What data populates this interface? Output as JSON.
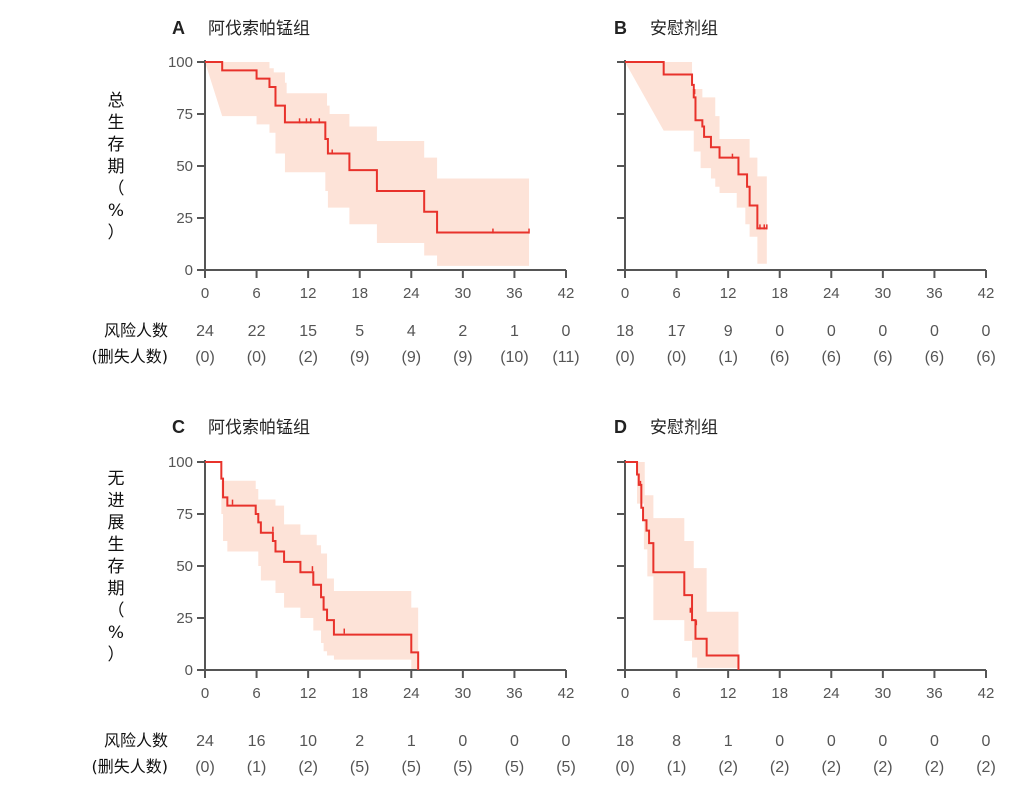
{
  "chart_data": [
    {
      "id": "A",
      "type": "line",
      "letter": "A",
      "title": "阿伐索帕锰组",
      "ylabel": "总生存期（%）",
      "xlim": [
        0,
        42
      ],
      "ylim": [
        0,
        100
      ],
      "xticks": [
        "0",
        "6",
        "12",
        "18",
        "24",
        "30",
        "36",
        "42"
      ],
      "yticks": [
        "0",
        "25",
        "50",
        "75",
        "100"
      ],
      "steps": [
        [
          0,
          100
        ],
        [
          2,
          100
        ],
        [
          2,
          96
        ],
        [
          6,
          96
        ],
        [
          6,
          92
        ],
        [
          7.5,
          92
        ],
        [
          7.5,
          88
        ],
        [
          8.2,
          88
        ],
        [
          8.2,
          79
        ],
        [
          9.3,
          79
        ],
        [
          9.3,
          71
        ],
        [
          14,
          71
        ],
        [
          14,
          63
        ],
        [
          14.3,
          63
        ],
        [
          14.3,
          56
        ],
        [
          16.8,
          56
        ],
        [
          16.8,
          48
        ],
        [
          20,
          48
        ],
        [
          20,
          38
        ],
        [
          25.5,
          38
        ],
        [
          25.5,
          28
        ],
        [
          27,
          28
        ],
        [
          27,
          18
        ],
        [
          37.7,
          18
        ]
      ],
      "ci_upper": [
        [
          0,
          100
        ],
        [
          2,
          100
        ],
        [
          6,
          100
        ],
        [
          7.5,
          97
        ],
        [
          8,
          95
        ],
        [
          9.3,
          90
        ],
        [
          9.5,
          85
        ],
        [
          14,
          85
        ],
        [
          14.2,
          79
        ],
        [
          14.5,
          75
        ],
        [
          16.8,
          75
        ],
        [
          16.8,
          69
        ],
        [
          20,
          69
        ],
        [
          20,
          62
        ],
        [
          25.5,
          62
        ],
        [
          25.5,
          54
        ],
        [
          27,
          54
        ],
        [
          27,
          44
        ],
        [
          37.7,
          44
        ]
      ],
      "ci_lower": [
        [
          2,
          74
        ],
        [
          6,
          74
        ],
        [
          6,
          70
        ],
        [
          7.5,
          70
        ],
        [
          7.5,
          66
        ],
        [
          8.2,
          66
        ],
        [
          8.2,
          56
        ],
        [
          9.3,
          56
        ],
        [
          9.3,
          47
        ],
        [
          14,
          47
        ],
        [
          14,
          38
        ],
        [
          14.3,
          38
        ],
        [
          14.3,
          30
        ],
        [
          16.8,
          30
        ],
        [
          16.8,
          22
        ],
        [
          20,
          22
        ],
        [
          20,
          13
        ],
        [
          25.5,
          13
        ],
        [
          25.5,
          7
        ],
        [
          27,
          7
        ],
        [
          27,
          2
        ],
        [
          37.7,
          2
        ]
      ],
      "censors": [
        [
          11,
          71
        ],
        [
          11.8,
          71
        ],
        [
          12.3,
          71
        ],
        [
          13.3,
          71
        ],
        [
          14.8,
          56
        ],
        [
          33.5,
          18
        ],
        [
          37.7,
          18
        ]
      ],
      "risk_numbers": [
        "24",
        "22",
        "15",
        "5",
        "4",
        "2",
        "1",
        "0"
      ],
      "censored_numbers": [
        "(0)",
        "(0)",
        "(2)",
        "(9)",
        "(9)",
        "(9)",
        "(10)",
        "(11)"
      ]
    },
    {
      "id": "B",
      "type": "line",
      "letter": "B",
      "title": "安慰剂组",
      "ylabel": "",
      "xlim": [
        0,
        42
      ],
      "ylim": [
        0,
        100
      ],
      "xticks": [
        "0",
        "6",
        "12",
        "18",
        "24",
        "30",
        "36",
        "42"
      ],
      "yticks": [
        "",
        "",
        "",
        "",
        ""
      ],
      "steps": [
        [
          0,
          100
        ],
        [
          4.5,
          100
        ],
        [
          4.5,
          94
        ],
        [
          7.8,
          94
        ],
        [
          7.8,
          89
        ],
        [
          8,
          89
        ],
        [
          8,
          83
        ],
        [
          8.2,
          83
        ],
        [
          8.2,
          72
        ],
        [
          9,
          72
        ],
        [
          9,
          69
        ],
        [
          9.2,
          69
        ],
        [
          9.2,
          64
        ],
        [
          10,
          64
        ],
        [
          10,
          59
        ],
        [
          11,
          59
        ],
        [
          11,
          54
        ],
        [
          13.2,
          54
        ],
        [
          13.2,
          46
        ],
        [
          14.2,
          46
        ],
        [
          14.2,
          40
        ],
        [
          14.5,
          40
        ],
        [
          14.5,
          31
        ],
        [
          15.4,
          31
        ],
        [
          15.4,
          20
        ],
        [
          16.5,
          20
        ]
      ],
      "ci_upper": [
        [
          0,
          100
        ],
        [
          4.5,
          100
        ],
        [
          7.8,
          99
        ],
        [
          7.8,
          87
        ],
        [
          8.8,
          87
        ],
        [
          9,
          83
        ],
        [
          10,
          83
        ],
        [
          10.5,
          74
        ],
        [
          11,
          74
        ],
        [
          11,
          63
        ],
        [
          13.2,
          63
        ],
        [
          14.5,
          54
        ],
        [
          15.4,
          54
        ],
        [
          15.4,
          45
        ],
        [
          16.5,
          45
        ]
      ],
      "ci_lower": [
        [
          4.5,
          67
        ],
        [
          7.8,
          67
        ],
        [
          8,
          57
        ],
        [
          8.8,
          57
        ],
        [
          8.8,
          49
        ],
        [
          9.2,
          49
        ],
        [
          10,
          44
        ],
        [
          10.5,
          40
        ],
        [
          11,
          37
        ],
        [
          13,
          30
        ],
        [
          13.2,
          30
        ],
        [
          14,
          22
        ],
        [
          14.5,
          16
        ],
        [
          15.4,
          16
        ],
        [
          15.4,
          3
        ],
        [
          16.5,
          3
        ]
      ],
      "censors": [
        [
          8.1,
          85
        ],
        [
          12.5,
          54
        ],
        [
          15.7,
          20
        ],
        [
          16.2,
          20
        ],
        [
          16.5,
          20
        ]
      ],
      "risk_numbers": [
        "18",
        "17",
        "9",
        "0",
        "0",
        "0",
        "0",
        "0"
      ],
      "censored_numbers": [
        "(0)",
        "(0)",
        "(1)",
        "(6)",
        "(6)",
        "(6)",
        "(6)",
        "(6)"
      ]
    },
    {
      "id": "C",
      "type": "line",
      "letter": "C",
      "title": "阿伐索帕锰组",
      "ylabel": "无进展生存期（%）",
      "xlim": [
        0,
        42
      ],
      "ylim": [
        0,
        100
      ],
      "xticks": [
        "0",
        "6",
        "12",
        "18",
        "24",
        "30",
        "36",
        "42"
      ],
      "yticks": [
        "0",
        "25",
        "50",
        "75",
        "100"
      ],
      "steps": [
        [
          0,
          100
        ],
        [
          1.9,
          100
        ],
        [
          1.9,
          92
        ],
        [
          2.1,
          92
        ],
        [
          2.1,
          83
        ],
        [
          2.6,
          83
        ],
        [
          2.6,
          79
        ],
        [
          5.9,
          79
        ],
        [
          5.9,
          75
        ],
        [
          6.2,
          75
        ],
        [
          6.2,
          71
        ],
        [
          6.5,
          71
        ],
        [
          6.5,
          66
        ],
        [
          7.9,
          66
        ],
        [
          7.9,
          62
        ],
        [
          8.2,
          62
        ],
        [
          8.2,
          57
        ],
        [
          9.2,
          57
        ],
        [
          9.2,
          52
        ],
        [
          11.1,
          52
        ],
        [
          11.1,
          47
        ],
        [
          12.6,
          47
        ],
        [
          12.6,
          41
        ],
        [
          13.5,
          41
        ],
        [
          13.5,
          35
        ],
        [
          13.8,
          35
        ],
        [
          13.8,
          29
        ],
        [
          14.2,
          29
        ],
        [
          14.2,
          24
        ],
        [
          15,
          24
        ],
        [
          15,
          17
        ],
        [
          24,
          17
        ],
        [
          24,
          8.5
        ],
        [
          24.8,
          8.5
        ],
        [
          24.8,
          0
        ]
      ],
      "ci_upper": [
        [
          1.9,
          91
        ],
        [
          5.5,
          91
        ],
        [
          5.9,
          87
        ],
        [
          6.2,
          82
        ],
        [
          7.9,
          82
        ],
        [
          8.2,
          79
        ],
        [
          9.2,
          75
        ],
        [
          9.2,
          70
        ],
        [
          11.1,
          70
        ],
        [
          11.1,
          65
        ],
        [
          12.6,
          65
        ],
        [
          13,
          60
        ],
        [
          13.5,
          56
        ],
        [
          14.2,
          50
        ],
        [
          14.2,
          44
        ],
        [
          15,
          44
        ],
        [
          15,
          38
        ],
        [
          24,
          38
        ],
        [
          24,
          30
        ],
        [
          24.8,
          30
        ]
      ],
      "ci_lower": [
        [
          1.9,
          75
        ],
        [
          2.1,
          62
        ],
        [
          2.6,
          57
        ],
        [
          5.9,
          57
        ],
        [
          6.2,
          50
        ],
        [
          6.5,
          43
        ],
        [
          7.9,
          43
        ],
        [
          8.2,
          37
        ],
        [
          9.2,
          31
        ],
        [
          9.2,
          30
        ],
        [
          11.1,
          30
        ],
        [
          11.1,
          25
        ],
        [
          12.6,
          25
        ],
        [
          12.6,
          19
        ],
        [
          13.5,
          13
        ],
        [
          13.8,
          9
        ],
        [
          14.2,
          7
        ],
        [
          15,
          5
        ],
        [
          24,
          5
        ],
        [
          24,
          0
        ],
        [
          24.8,
          0
        ]
      ],
      "censors": [
        [
          3.2,
          80
        ],
        [
          7.9,
          67
        ],
        [
          12.5,
          48
        ],
        [
          16.2,
          18
        ]
      ],
      "risk_numbers": [
        "24",
        "16",
        "10",
        "2",
        "1",
        "0",
        "0",
        "0"
      ],
      "censored_numbers": [
        "(0)",
        "(1)",
        "(2)",
        "(5)",
        "(5)",
        "(5)",
        "(5)",
        "(5)"
      ]
    },
    {
      "id": "D",
      "type": "line",
      "letter": "D",
      "title": "安慰剂组",
      "ylabel": "",
      "xlim": [
        0,
        42
      ],
      "ylim": [
        0,
        100
      ],
      "xticks": [
        "0",
        "6",
        "12",
        "18",
        "24",
        "30",
        "36",
        "42"
      ],
      "yticks": [
        "",
        "",
        "",
        "",
        ""
      ],
      "steps": [
        [
          0,
          100
        ],
        [
          1.4,
          100
        ],
        [
          1.4,
          94
        ],
        [
          1.6,
          94
        ],
        [
          1.6,
          89
        ],
        [
          1.9,
          89
        ],
        [
          1.9,
          78
        ],
        [
          2.1,
          78
        ],
        [
          2.1,
          72
        ],
        [
          2.5,
          72
        ],
        [
          2.5,
          67
        ],
        [
          2.8,
          67
        ],
        [
          2.8,
          61
        ],
        [
          3.3,
          61
        ],
        [
          3.3,
          47
        ],
        [
          6.9,
          47
        ],
        [
          6.9,
          36
        ],
        [
          7.8,
          36
        ],
        [
          7.8,
          24
        ],
        [
          8.2,
          24
        ],
        [
          8.2,
          15
        ],
        [
          9.5,
          15
        ],
        [
          9.5,
          7
        ],
        [
          13.2,
          7
        ],
        [
          13.2,
          0
        ]
      ],
      "ci_upper": [
        [
          1.4,
          100
        ],
        [
          2.3,
          100
        ],
        [
          2.3,
          84
        ],
        [
          3.3,
          84
        ],
        [
          3.3,
          73
        ],
        [
          6.9,
          73
        ],
        [
          6.9,
          62
        ],
        [
          8,
          62
        ],
        [
          8,
          49
        ],
        [
          9.5,
          49
        ],
        [
          9.5,
          28
        ],
        [
          13.2,
          28
        ]
      ],
      "ci_lower": [
        [
          1.4,
          80
        ],
        [
          2.2,
          58
        ],
        [
          2.6,
          45
        ],
        [
          3.3,
          45
        ],
        [
          3.3,
          24
        ],
        [
          6.9,
          24
        ],
        [
          6.9,
          14
        ],
        [
          7.8,
          14
        ],
        [
          7.8,
          6
        ],
        [
          8.4,
          6
        ],
        [
          8.4,
          1
        ],
        [
          13.2,
          1
        ]
      ],
      "censors": [
        [
          1.8,
          89
        ],
        [
          7.6,
          28
        ],
        [
          8.3,
          22
        ]
      ],
      "risk_numbers": [
        "18",
        "8",
        "1",
        "0",
        "0",
        "0",
        "0",
        "0"
      ],
      "censored_numbers": [
        "(0)",
        "(1)",
        "(2)",
        "(2)",
        "(2)",
        "(2)",
        "(2)",
        "(2)"
      ]
    }
  ],
  "risk_label": "风险人数",
  "censored_label": "(删失人数)",
  "colors": {
    "curve": "#e8322b",
    "ci": "#fde3d8",
    "axis": "#555555"
  }
}
